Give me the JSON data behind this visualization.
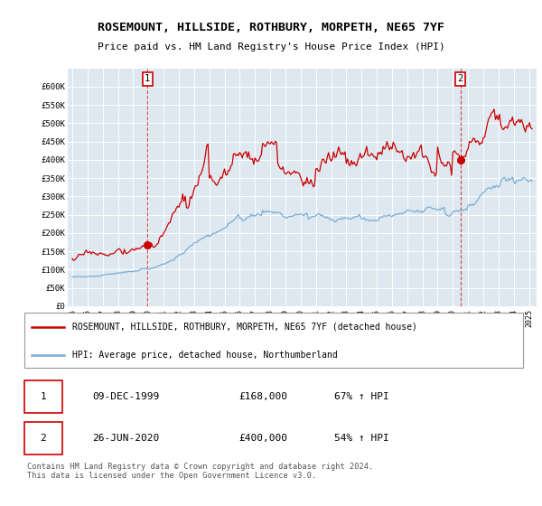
{
  "title": "ROSEMOUNT, HILLSIDE, ROTHBURY, MORPETH, NE65 7YF",
  "subtitle": "Price paid vs. HM Land Registry's House Price Index (HPI)",
  "ylim": [
    0,
    650000
  ],
  "yticks": [
    0,
    50000,
    100000,
    150000,
    200000,
    250000,
    300000,
    350000,
    400000,
    450000,
    500000,
    550000,
    600000
  ],
  "xlim_start": 1994.7,
  "xlim_end": 2025.5,
  "xtick_years": [
    1995,
    1996,
    1997,
    1998,
    1999,
    2000,
    2001,
    2002,
    2003,
    2004,
    2005,
    2006,
    2007,
    2008,
    2009,
    2010,
    2011,
    2012,
    2013,
    2014,
    2015,
    2016,
    2017,
    2018,
    2019,
    2020,
    2021,
    2022,
    2023,
    2024,
    2025
  ],
  "property_color": "#cc0000",
  "hpi_color": "#7aadd4",
  "bg_color": "#dde8f0",
  "grid_color": "#c8d8e8",
  "sale1_x": 1999.94,
  "sale1_y": 168000,
  "sale1_label": "1",
  "sale1_date": "09-DEC-1999",
  "sale1_price": "£168,000",
  "sale1_hpi": "67% ↑ HPI",
  "sale2_x": 2020.49,
  "sale2_y": 400000,
  "sale2_label": "2",
  "sale2_date": "26-JUN-2020",
  "sale2_price": "£400,000",
  "sale2_hpi": "54% ↑ HPI",
  "legend_label1": "ROSEMOUNT, HILLSIDE, ROTHBURY, MORPETH, NE65 7YF (detached house)",
  "legend_label2": "HPI: Average price, detached house, Northumberland",
  "footnote": "Contains HM Land Registry data © Crown copyright and database right 2024.\nThis data is licensed under the Open Government Licence v3.0."
}
